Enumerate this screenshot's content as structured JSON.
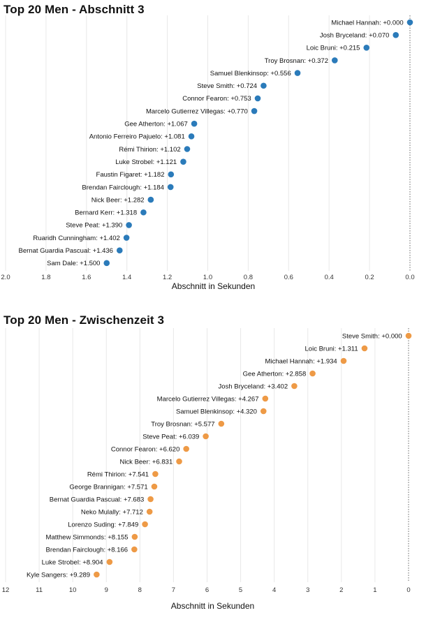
{
  "chart_data": [
    {
      "type": "scatter",
      "title": "Top 20 Men - Abschnitt 3",
      "xlabel": "Abschnitt in Sekunden",
      "ylabel": "",
      "xlim": [
        2.0,
        0.0
      ],
      "x_reversed": true,
      "x_ticks": [
        "2.0",
        "1.8",
        "1.6",
        "1.4",
        "1.2",
        "1.0",
        "0.8",
        "0.6",
        "0.4",
        "0.2",
        "0.0"
      ],
      "x_tick_values": [
        2.0,
        1.8,
        1.6,
        1.4,
        1.2,
        1.0,
        0.8,
        0.6,
        0.4,
        0.2,
        0.0
      ],
      "grid": true,
      "marker_color": "#2b7bba",
      "points": [
        {
          "name": "Michael Hannah",
          "value": 0.0,
          "label": "Michael Hannah: +0.000"
        },
        {
          "name": "Josh Bryceland",
          "value": 0.07,
          "label": "Josh Bryceland: +0.070"
        },
        {
          "name": "Loic Bruni",
          "value": 0.215,
          "label": "Loic Bruni: +0.215"
        },
        {
          "name": "Troy Brosnan",
          "value": 0.372,
          "label": "Troy Brosnan: +0.372"
        },
        {
          "name": "Samuel Blenkinsop",
          "value": 0.556,
          "label": "Samuel Blenkinsop: +0.556"
        },
        {
          "name": "Steve Smith",
          "value": 0.724,
          "label": "Steve Smith: +0.724"
        },
        {
          "name": "Connor Fearon",
          "value": 0.753,
          "label": "Connor Fearon: +0.753"
        },
        {
          "name": "Marcelo Gutierrez Villegas",
          "value": 0.77,
          "label": "Marcelo Gutierrez Villegas: +0.770"
        },
        {
          "name": "Gee Atherton",
          "value": 1.067,
          "label": "Gee Atherton: +1.067"
        },
        {
          "name": "Antonio Ferreiro Pajuelo",
          "value": 1.081,
          "label": "Antonio Ferreiro Pajuelo: +1.081"
        },
        {
          "name": "Rémi Thirion",
          "value": 1.102,
          "label": "Rémi Thirion: +1.102"
        },
        {
          "name": "Luke Strobel",
          "value": 1.121,
          "label": "Luke Strobel: +1.121"
        },
        {
          "name": "Faustin Figaret",
          "value": 1.182,
          "label": "Faustin Figaret: +1.182"
        },
        {
          "name": "Brendan Fairclough",
          "value": 1.184,
          "label": "Brendan Fairclough: +1.184"
        },
        {
          "name": "Nick Beer",
          "value": 1.282,
          "label": "Nick Beer: +1.282"
        },
        {
          "name": "Bernard Kerr",
          "value": 1.318,
          "label": "Bernard Kerr: +1.318"
        },
        {
          "name": "Steve Peat",
          "value": 1.39,
          "label": "Steve Peat: +1.390"
        },
        {
          "name": "Ruaridh Cunningham",
          "value": 1.402,
          "label": "Ruaridh Cunningham: +1.402"
        },
        {
          "name": "Bernat Guardia Pascual",
          "value": 1.436,
          "label": "Bernat Guardia Pascual: +1.436"
        },
        {
          "name": "Sam Dale",
          "value": 1.5,
          "label": "Sam Dale: +1.500"
        }
      ]
    },
    {
      "type": "scatter",
      "title": "Top 20 Men - Zwischenzeit 3",
      "xlabel": "Abschnitt in Sekunden",
      "ylabel": "",
      "xlim": [
        12,
        0
      ],
      "x_reversed": true,
      "x_ticks": [
        "12",
        "11",
        "10",
        "9",
        "8",
        "7",
        "6",
        "5",
        "4",
        "3",
        "2",
        "1",
        "0"
      ],
      "x_tick_values": [
        12,
        11,
        10,
        9,
        8,
        7,
        6,
        5,
        4,
        3,
        2,
        1,
        0
      ],
      "grid": true,
      "marker_color": "#ee9a46",
      "points": [
        {
          "name": "Steve Smith",
          "value": 0.0,
          "label": "Steve Smith: +0.000"
        },
        {
          "name": "Loic Bruni",
          "value": 1.311,
          "label": "Loic Bruni: +1.311"
        },
        {
          "name": "Michael Hannah",
          "value": 1.934,
          "label": "Michael Hannah: +1.934"
        },
        {
          "name": "Gee Atherton",
          "value": 2.858,
          "label": "Gee Atherton: +2.858"
        },
        {
          "name": "Josh Bryceland",
          "value": 3.402,
          "label": "Josh Bryceland: +3.402"
        },
        {
          "name": "Marcelo Gutierrez Villegas",
          "value": 4.267,
          "label": "Marcelo Gutierrez Villegas: +4.267"
        },
        {
          "name": "Samuel Blenkinsop",
          "value": 4.32,
          "label": "Samuel Blenkinsop: +4.320"
        },
        {
          "name": "Troy Brosnan",
          "value": 5.577,
          "label": "Troy Brosnan: +5.577"
        },
        {
          "name": "Steve Peat",
          "value": 6.039,
          "label": "Steve Peat: +6.039"
        },
        {
          "name": "Connor Fearon",
          "value": 6.62,
          "label": "Connor Fearon: +6.620"
        },
        {
          "name": "Nick Beer",
          "value": 6.831,
          "label": "Nick Beer: +6.831"
        },
        {
          "name": "Rémi Thirion",
          "value": 7.541,
          "label": "Rémi Thirion: +7.541"
        },
        {
          "name": "George Brannigan",
          "value": 7.571,
          "label": "George Brannigan: +7.571"
        },
        {
          "name": "Bernat Guardia Pascual",
          "value": 7.683,
          "label": "Bernat Guardia Pascual: +7.683"
        },
        {
          "name": "Neko Mulally",
          "value": 7.712,
          "label": "Neko Mulally: +7.712"
        },
        {
          "name": "Lorenzo Suding",
          "value": 7.849,
          "label": "Lorenzo Suding: +7.849"
        },
        {
          "name": "Matthew Simmonds",
          "value": 8.155,
          "label": "Matthew Simmonds: +8.155"
        },
        {
          "name": "Brendan Fairclough",
          "value": 8.166,
          "label": "Brendan Fairclough: +8.166"
        },
        {
          "name": "Luke Strobel",
          "value": 8.904,
          "label": "Luke Strobel: +8.904"
        },
        {
          "name": "Kyle Sangers",
          "value": 9.289,
          "label": "Kyle Sangers: +9.289"
        }
      ]
    }
  ]
}
